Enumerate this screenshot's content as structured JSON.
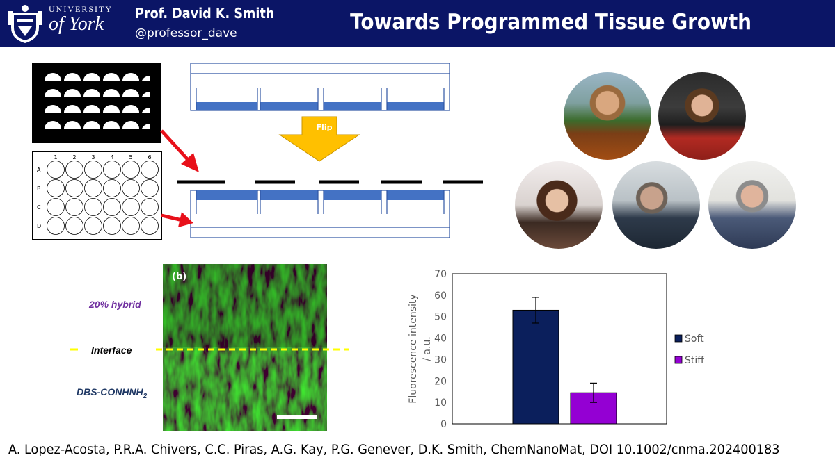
{
  "header": {
    "university_small": "UNIVERSITY",
    "university_big": "of York",
    "author": "Prof. David K. Smith",
    "handle": "@professor_dave",
    "title": "Towards Programmed Tissue Growth"
  },
  "schematic": {
    "flip_label": "Flip",
    "plate_columns": [
      "1",
      "2",
      "3",
      "4",
      "5",
      "6"
    ],
    "plate_rows": [
      "A",
      "B",
      "C",
      "D"
    ]
  },
  "micrograph": {
    "panel_label": "(b)",
    "top_label": "20% hybrid",
    "interface_label": "Interface",
    "bottom_label": "DBS-CONHNH",
    "bottom_label_sub": "2"
  },
  "team_photos": [
    "person-photo-1",
    "person-photo-2",
    "person-photo-3",
    "person-photo-4",
    "person-photo-5"
  ],
  "chart_data": {
    "type": "bar",
    "categories": [
      "Soft",
      "Stiff"
    ],
    "values": [
      53,
      14.5
    ],
    "errors": [
      6,
      4.5
    ],
    "colors": [
      "#0b1f5c",
      "#9400d3"
    ],
    "ylabel": "Fluorescence intensity / a.u.",
    "ylabel_line1": "Fluorescence intensity",
    "ylabel_line2": "/ a.u.",
    "ylim": [
      0,
      70
    ],
    "yticks": [
      0,
      10,
      20,
      30,
      40,
      50,
      60,
      70
    ],
    "legend": [
      "Soft",
      "Stiff"
    ],
    "legend_position": "right"
  },
  "citation": "A. Lopez-Acosta, P.R.A. Chivers, C.C. Piras, A.G. Kay, P.G. Genever, D.K. Smith,  ChemNanoMat, DOI 10.1002/cnma.202400183"
}
